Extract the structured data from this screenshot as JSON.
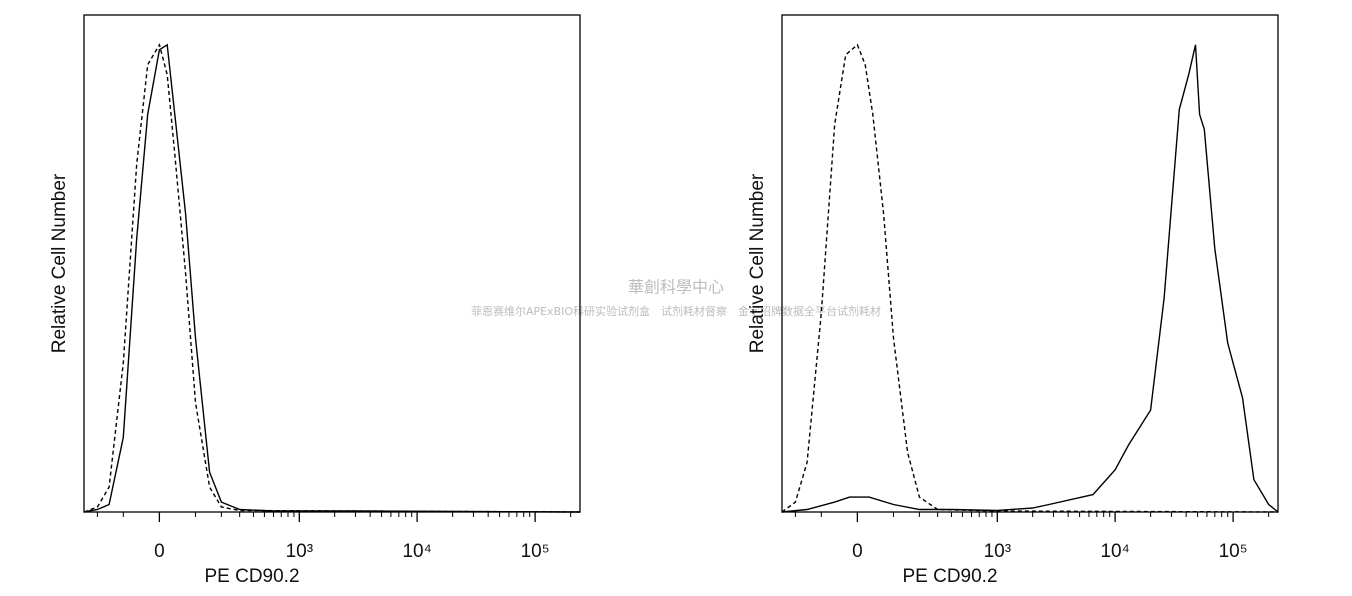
{
  "chart_data": [
    {
      "type": "line",
      "xlabel": "PE CD90.2",
      "ylabel": "Relative Cell Number",
      "xscale": "biexponential",
      "xlim": [
        -270,
        240000
      ],
      "ylim": [
        0,
        100
      ],
      "xticks": [
        0,
        {
          "value": 1000,
          "label": "10³"
        },
        {
          "value": 10000,
          "label": "10⁴"
        },
        {
          "value": 100000,
          "label": "10⁵"
        }
      ],
      "xminorticks": [
        -200,
        -100,
        100,
        200,
        300,
        400,
        500,
        600,
        700,
        800,
        900,
        2000,
        3000,
        4000,
        5000,
        6000,
        7000,
        8000,
        9000,
        20000,
        30000,
        40000,
        50000,
        60000,
        70000,
        80000,
        90000,
        200000
      ],
      "series": [
        {
          "color": "#000000",
          "dashed": false,
          "x": [
            -270,
            -200,
            -150,
            -100,
            -60,
            -30,
            0,
            20,
            40,
            70,
            100,
            150,
            200,
            300,
            600,
            3000,
            240000
          ],
          "values": [
            0,
            0.5,
            1.5,
            15,
            55,
            80,
            93,
            94,
            80,
            60,
            35,
            8,
            2,
            0.5,
            0.2,
            0.2,
            0
          ]
        },
        {
          "color": "#000000",
          "dashed": true,
          "x": [
            -270,
            -200,
            -150,
            -100,
            -60,
            -30,
            0,
            20,
            40,
            70,
            100,
            150,
            200,
            300,
            240000
          ],
          "values": [
            0,
            1,
            5,
            30,
            70,
            90,
            94,
            88,
            72,
            48,
            22,
            5,
            1,
            0.3,
            0
          ]
        }
      ]
    },
    {
      "type": "line",
      "xlabel": "PE CD90.2",
      "ylabel": "Relative Cell Number",
      "xscale": "biexponential",
      "xlim": [
        -270,
        240000
      ],
      "ylim": [
        0,
        100
      ],
      "xticks": [
        0,
        {
          "value": 1000,
          "label": "10³"
        },
        {
          "value": 10000,
          "label": "10⁴"
        },
        {
          "value": 100000,
          "label": "10⁵"
        }
      ],
      "xminorticks": [
        -200,
        -100,
        100,
        200,
        300,
        400,
        500,
        600,
        700,
        800,
        900,
        2000,
        3000,
        4000,
        5000,
        6000,
        7000,
        8000,
        9000,
        20000,
        30000,
        40000,
        50000,
        60000,
        70000,
        80000,
        90000,
        200000
      ],
      "series": [
        {
          "color": "#000000",
          "dashed": true,
          "x": [
            -270,
            -200,
            -150,
            -100,
            -60,
            -30,
            0,
            20,
            40,
            70,
            100,
            150,
            200,
            300,
            1000,
            240000
          ],
          "values": [
            0,
            2,
            10,
            40,
            78,
            92,
            94,
            90,
            80,
            60,
            35,
            12,
            3,
            0.5,
            0.2,
            0
          ]
        },
        {
          "color": "#000000",
          "dashed": false,
          "x": [
            -270,
            -150,
            -60,
            -20,
            30,
            100,
            200,
            400,
            1000,
            2000,
            2750,
            6500,
            10000,
            13000,
            20000,
            26000,
            35000,
            42000,
            48000,
            52000,
            57000,
            70000,
            90000,
            120000,
            150000,
            200000,
            240000
          ],
          "values": [
            0,
            0.5,
            2,
            3,
            3,
            1.5,
            0.5,
            0.5,
            0.3,
            0.8,
            1.5,
            3.5,
            8.5,
            13.5,
            20.5,
            43,
            81,
            88,
            94,
            80,
            77,
            53,
            34,
            23,
            6.5,
            1.5,
            0
          ]
        }
      ]
    }
  ],
  "watermark": {
    "line1": "華創科學中心",
    "line2": "菲恩赛维尔APExBIO科研实验试剂盒　试剂耗材督察　金字招牌数据全平台试剂耗材"
  }
}
